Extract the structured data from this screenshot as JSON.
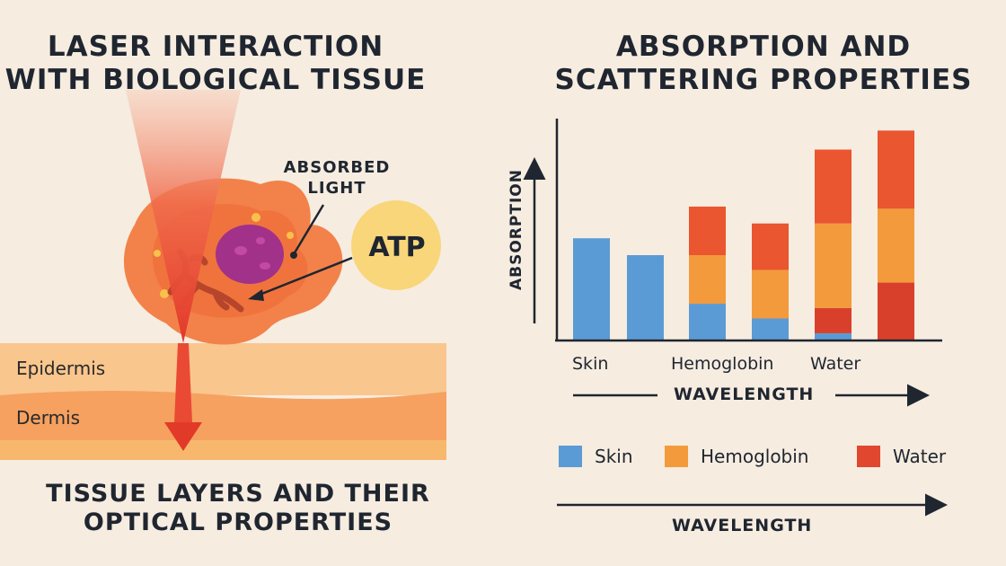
{
  "left_panel": {
    "title": "LASER INTERACTION WITH BIOLOGICAL TISSUE",
    "title_line1": "LASER INTERACTION",
    "title_line2": "WITH BIOLOGICAL TISSUE",
    "absorbed_line1": "ABSORBED",
    "absorbed_line2": "LIGHT",
    "atp": "ATP",
    "layers": [
      "Epidermis",
      "Dermis"
    ],
    "bottom_title_line1": "TISSUE LAYERS AND THEIR",
    "bottom_title_line2": "OPTICAL PROPERTIES"
  },
  "right_panel": {
    "title_line1": "ABSORPTION AND",
    "title_line2": "SCATTERING PROPERTIES",
    "ylabel": "ABSORPTION",
    "xlabel": "WAVELENGTH",
    "category_labels": [
      "Skin",
      "Hemoglobin",
      "Water"
    ],
    "legend": [
      {
        "name": "Skin",
        "color": "#5b9bd5"
      },
      {
        "name": "Hemoglobin",
        "color": "#f39a3c"
      },
      {
        "name": "Water",
        "color": "#e0472e"
      }
    ],
    "bottom_axis_label": "WAVELENGTH"
  },
  "chart_data": {
    "type": "bar",
    "stacked": true,
    "title": "ABSORPTION AND SCATTERING PROPERTIES",
    "xlabel": "WAVELENGTH",
    "ylabel": "ABSORPTION",
    "ylim": [
      0,
      100
    ],
    "bars": [
      {
        "segments": [
          {
            "value": 48,
            "color": "#5b9bd5"
          }
        ]
      },
      {
        "segments": [
          {
            "value": 40,
            "color": "#5b9bd5"
          }
        ]
      },
      {
        "segments": [
          {
            "value": 17,
            "color": "#5b9bd5"
          },
          {
            "value": 23,
            "color": "#f39a3c"
          },
          {
            "value": 23,
            "color": "#e9562f"
          }
        ]
      },
      {
        "segments": [
          {
            "value": 10,
            "color": "#5b9bd5"
          },
          {
            "value": 23,
            "color": "#f39a3c"
          },
          {
            "value": 22,
            "color": "#e9562f"
          }
        ]
      },
      {
        "segments": [
          {
            "value": 3,
            "color": "#5b9bd5"
          },
          {
            "value": 12,
            "color": "#d9402b"
          },
          {
            "value": 40,
            "color": "#f39a3c"
          },
          {
            "value": 35,
            "color": "#e9562f"
          }
        ]
      },
      {
        "segments": [
          {
            "value": 27,
            "color": "#d9402b"
          },
          {
            "value": 35,
            "color": "#f39a3c"
          },
          {
            "value": 37,
            "color": "#e9562f"
          }
        ]
      }
    ]
  }
}
